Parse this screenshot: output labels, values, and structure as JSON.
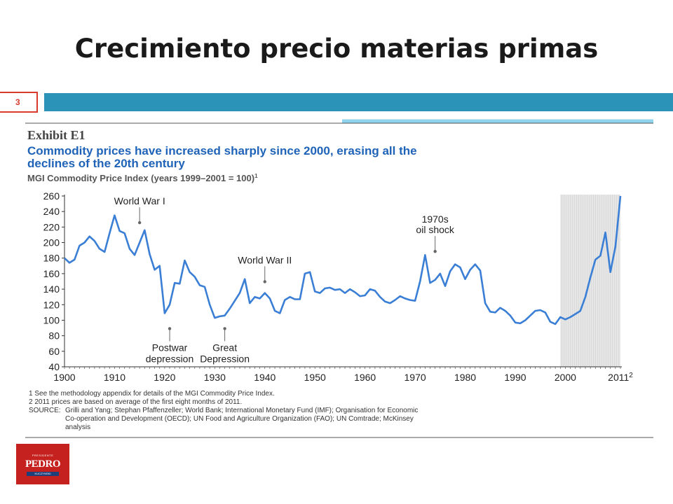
{
  "slide": {
    "title": "Crecimiento precio materias primas",
    "page_number": "3",
    "accent_color": "#2b93b8",
    "logo": {
      "subtitle": "PRESIDENTE",
      "name": "PEDRO",
      "bar": "KUCZYNSKI"
    }
  },
  "exhibit": {
    "label": "Exhibit E1",
    "headline": [
      "Commodity prices have increased sharply since 2000, erasing all the",
      "declines of the 20th century"
    ],
    "subtitle": "MGI Commodity Price Index (years 1999–2001 = 100)",
    "subtitle_sup": "1",
    "footnotes": [
      "1  See the methodology appendix for details of the MGI Commodity Price Index.",
      "2  2011 prices are based on average of the first eight months of 2011."
    ],
    "source_label": "SOURCE:",
    "source_lines": [
      "Grilli and Yang; Stephan Pfaffenzeller; World Bank; International Monetary Fund (IMF); Organisation for Economic",
      "Co-operation and Development (OECD); UN Food and Agriculture Organization (FAO); UN Comtrade; McKinsey",
      "analysis"
    ]
  },
  "chart_data": {
    "type": "line",
    "title": "Commodity prices have increased sharply since 2000, erasing all the declines of the 20th century",
    "ylabel": "MGI Commodity Price Index (years 1999–2001 = 100)",
    "xlim": [
      1900,
      2011
    ],
    "ylim": [
      40,
      260
    ],
    "yticks": [
      40,
      60,
      80,
      100,
      120,
      140,
      160,
      180,
      200,
      220,
      240,
      260
    ],
    "xticks": [
      {
        "value": 1900,
        "label": "1900"
      },
      {
        "value": 1910,
        "label": "1910"
      },
      {
        "value": 1920,
        "label": "1920"
      },
      {
        "value": 1930,
        "label": "1930"
      },
      {
        "value": 1940,
        "label": "1940"
      },
      {
        "value": 1950,
        "label": "1950"
      },
      {
        "value": 1960,
        "label": "1960"
      },
      {
        "value": 1970,
        "label": "1970"
      },
      {
        "value": 1980,
        "label": "1980"
      },
      {
        "value": 1990,
        "label": "1990"
      },
      {
        "value": 2000,
        "label": "2000"
      },
      {
        "value": 2011,
        "label": "2011",
        "sup": "2"
      }
    ],
    "shaded_range": [
      1999,
      2011
    ],
    "line_color": "#3a7fd5",
    "annotations": [
      {
        "lines": [
          "World War I"
        ],
        "x": 1915,
        "y": 213,
        "position": "above"
      },
      {
        "lines": [
          "Postwar",
          "depression"
        ],
        "x": 1921,
        "y": 100,
        "position": "below"
      },
      {
        "lines": [
          "Great",
          "Depression"
        ],
        "x": 1932,
        "y": 100,
        "position": "below"
      },
      {
        "lines": [
          "World War II"
        ],
        "x": 1940,
        "y": 137,
        "position": "above"
      },
      {
        "lines": [
          "1970s",
          "oil shock"
        ],
        "x": 1974,
        "y": 176,
        "position": "above"
      }
    ],
    "x": [
      1900,
      1901,
      1902,
      1903,
      1904,
      1905,
      1906,
      1907,
      1908,
      1909,
      1910,
      1911,
      1912,
      1913,
      1914,
      1915,
      1916,
      1917,
      1918,
      1919,
      1920,
      1921,
      1922,
      1923,
      1924,
      1925,
      1926,
      1927,
      1928,
      1929,
      1930,
      1931,
      1932,
      1933,
      1934,
      1935,
      1936,
      1937,
      1938,
      1939,
      1940,
      1941,
      1942,
      1943,
      1944,
      1945,
      1946,
      1947,
      1948,
      1949,
      1950,
      1951,
      1952,
      1953,
      1954,
      1955,
      1956,
      1957,
      1958,
      1959,
      1960,
      1961,
      1962,
      1963,
      1964,
      1965,
      1966,
      1967,
      1968,
      1969,
      1970,
      1971,
      1972,
      1973,
      1974,
      1975,
      1976,
      1977,
      1978,
      1979,
      1980,
      1981,
      1982,
      1983,
      1984,
      1985,
      1986,
      1987,
      1988,
      1989,
      1990,
      1991,
      1992,
      1993,
      1994,
      1995,
      1996,
      1997,
      1998,
      1999,
      2000,
      2001,
      2002,
      2003,
      2004,
      2005,
      2006,
      2007,
      2008,
      2009,
      2010,
      2011
    ],
    "series": [
      {
        "values": [
          180,
          174,
          178,
          196,
          200,
          208,
          202,
          192,
          188,
          212,
          235,
          215,
          212,
          192,
          184,
          200,
          216,
          185,
          165,
          170,
          109,
          120,
          148,
          147,
          177,
          162,
          156,
          145,
          143,
          120,
          103,
          105,
          106,
          115,
          125,
          135,
          153,
          122,
          130,
          128,
          135,
          128,
          112,
          109,
          126,
          130,
          127,
          127,
          160,
          162,
          137,
          135,
          141,
          142,
          139,
          140,
          135,
          140,
          136,
          131,
          132,
          140,
          138,
          130,
          124,
          122,
          126,
          131,
          128,
          126,
          125,
          150,
          184,
          148,
          152,
          160,
          144,
          163,
          172,
          168,
          153,
          165,
          172,
          164,
          122,
          111,
          110,
          116,
          112,
          106,
          97,
          96,
          100,
          106,
          112,
          113,
          110,
          98,
          95,
          104,
          101,
          104,
          108,
          112,
          130,
          155,
          178,
          183,
          213,
          162,
          195,
          260
        ]
      }
    ]
  }
}
